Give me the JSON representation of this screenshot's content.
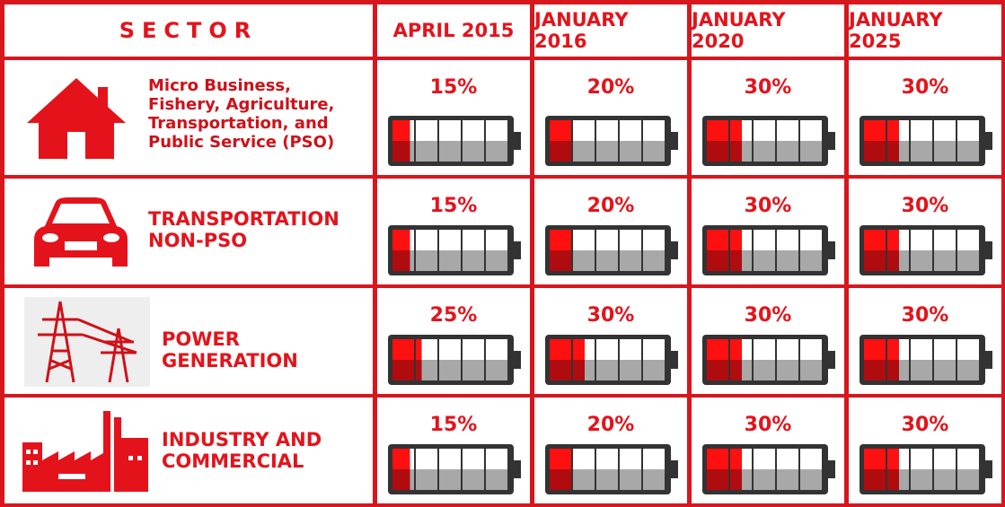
{
  "header": {
    "sector": "SECTOR",
    "periods": [
      "APRIL 2015",
      "JANUARY 2016",
      "JANUARY 2020",
      "JANUARY 2025"
    ]
  },
  "rows": [
    {
      "sector": "Micro Business, Fishery, Agriculture, Transportation, and Public Service (PSO)",
      "values": [
        15,
        20,
        30,
        30
      ],
      "value_labels": [
        "15%",
        "20%",
        "30%",
        "30%"
      ]
    },
    {
      "sector": "TRANSPORTATION NON-PSO",
      "values": [
        15,
        20,
        30,
        30
      ],
      "value_labels": [
        "15%",
        "20%",
        "30%",
        "30%"
      ]
    },
    {
      "sector": "POWER GENERATION",
      "values": [
        25,
        30,
        30,
        30
      ],
      "value_labels": [
        "25%",
        "30%",
        "30%",
        "30%"
      ]
    },
    {
      "sector": "INDUSTRY AND COMMERCIAL",
      "values": [
        15,
        20,
        30,
        30
      ],
      "value_labels": [
        "15%",
        "20%",
        "30%",
        "30%"
      ]
    }
  ]
}
